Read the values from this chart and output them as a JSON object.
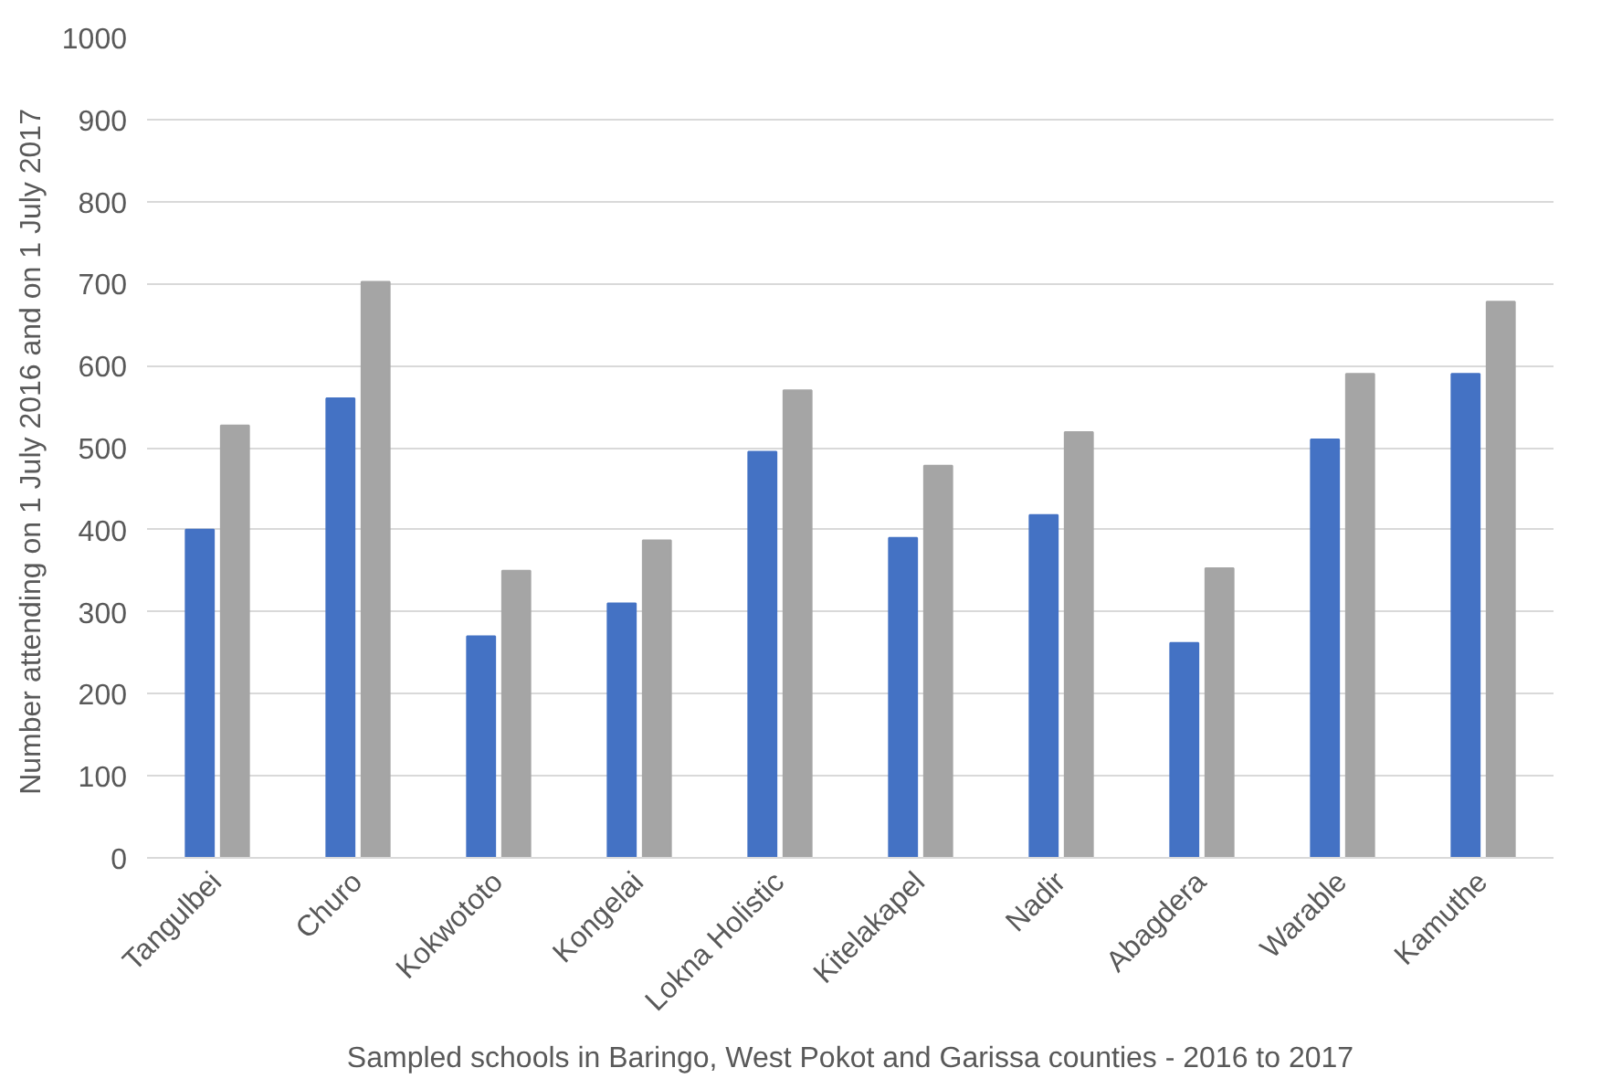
{
  "chart_data": {
    "type": "bar",
    "xlabel": "Sampled schools in Baringo, West Pokot and Garissa counties - 2016 to 2017",
    "ylabel": "Number attending on 1 July 2016 and on  1 July 2017",
    "categories": [
      "Tangulbei",
      "Churo",
      "Kokwototo",
      "Kongelai",
      "Lokna Holistic",
      "Kitelakapel",
      "Nadir",
      "Abagdera",
      "Warable",
      "Kamuthe"
    ],
    "series": [
      {
        "color": "#4472c4",
        "values": [
          400,
          560,
          270,
          310,
          495,
          390,
          418,
          262,
          510,
          590
        ]
      },
      {
        "color": "#a5a5a5",
        "values": [
          527,
          702,
          350,
          387,
          570,
          478,
          519,
          353,
          590,
          678
        ]
      }
    ],
    "ylim": [
      0,
      1000
    ],
    "yticks": [
      0,
      100,
      200,
      300,
      400,
      500,
      600,
      700,
      800,
      900,
      1000
    ],
    "grid": "y"
  }
}
